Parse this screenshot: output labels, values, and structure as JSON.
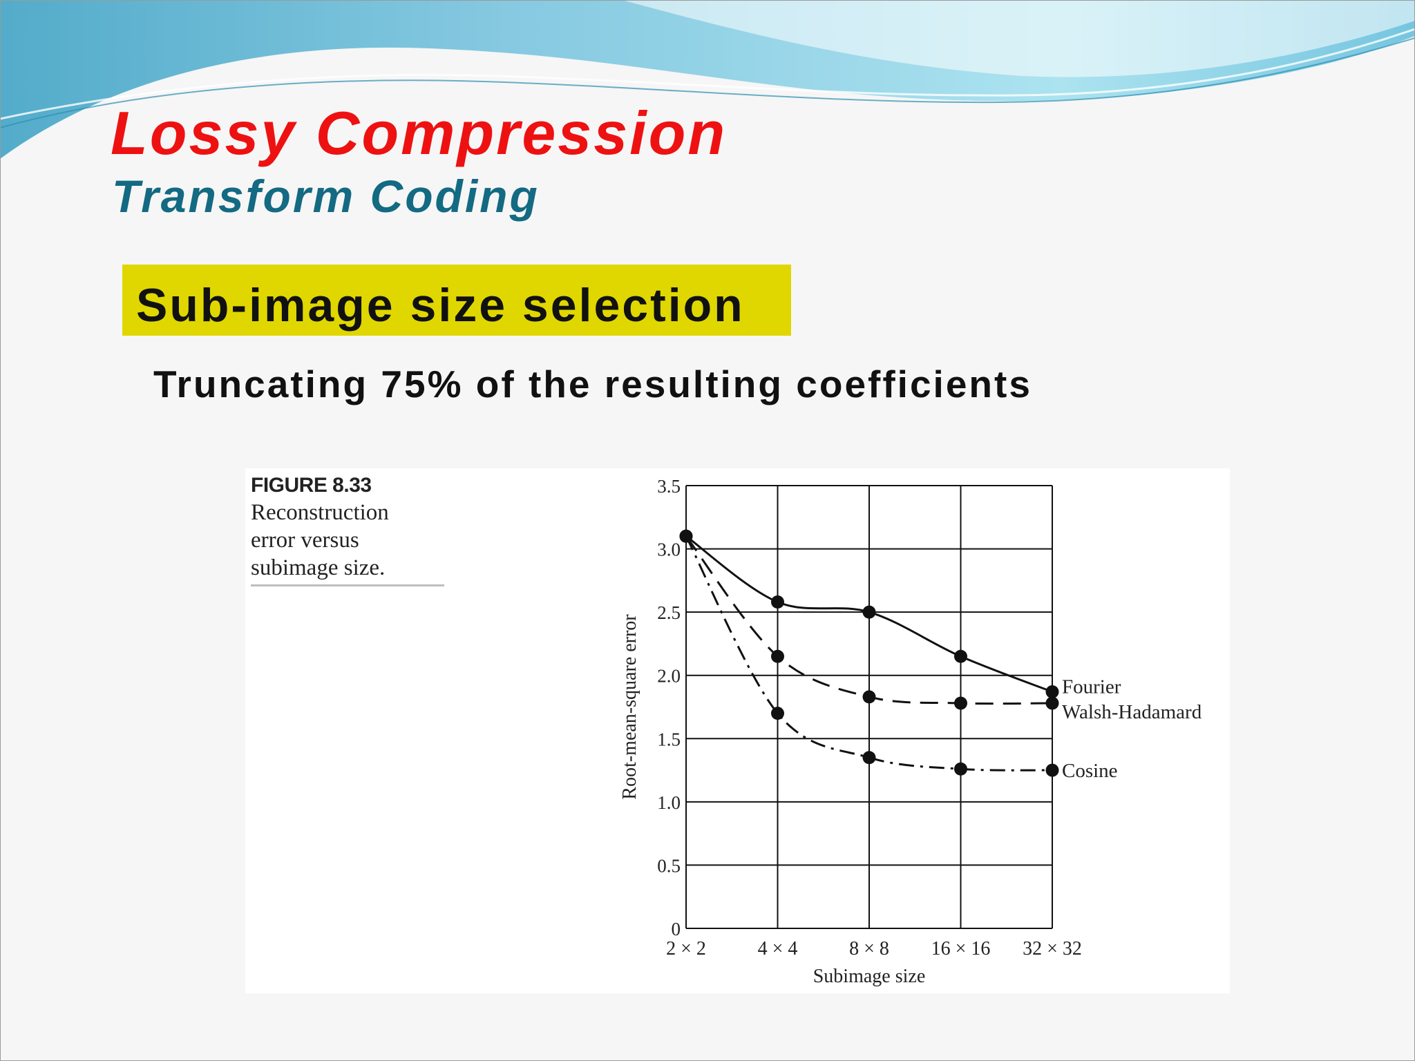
{
  "slide": {
    "title": "Lossy Compression",
    "subtitle": "Transform Coding",
    "highlight": "Sub-image size selection",
    "bullet": "Truncating 75% of the resulting coefficients",
    "colors": {
      "title": "#ee1111",
      "subtitle": "#136a82",
      "highlight_bg": "#e0d700",
      "wave_light": "#a8e2ef",
      "wave_mid": "#72c8e0",
      "wave_dark": "#4aa8c8"
    }
  },
  "figure": {
    "label": "FIGURE 8.33",
    "caption_lines": [
      "Reconstruction",
      "error versus",
      "subimage size."
    ]
  },
  "chart_data": {
    "type": "line",
    "categories": [
      "2 × 2",
      "4 × 4",
      "8 × 8",
      "16 × 16",
      "32 × 32"
    ],
    "xlabel": "Subimage size",
    "ylabel": "Root-mean-square error",
    "ylim": [
      0,
      3.5
    ],
    "yticks": [
      "0",
      "0.5",
      "1.0",
      "1.5",
      "2.0",
      "2.5",
      "3.0",
      "3.5"
    ],
    "grid": true,
    "legend": "labels at right end of each line",
    "series": [
      {
        "name": "Fourier",
        "line_style": "solid",
        "values": [
          3.1,
          2.58,
          2.5,
          2.15,
          1.87
        ]
      },
      {
        "name": "Walsh-Hadamard",
        "line_style": "dashed",
        "values": [
          3.1,
          2.15,
          1.83,
          1.78,
          1.78
        ]
      },
      {
        "name": "Cosine",
        "line_style": "dash-dot",
        "values": [
          3.1,
          1.7,
          1.35,
          1.26,
          1.25
        ]
      }
    ]
  }
}
